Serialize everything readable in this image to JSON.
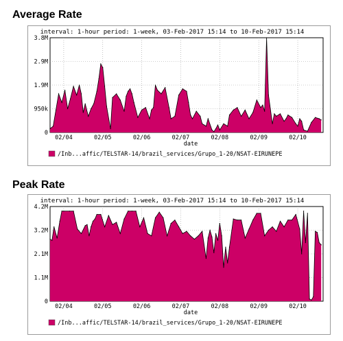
{
  "colors": {
    "fill": "#cc0066",
    "stroke": "#000000",
    "grid": "#9a9a9a",
    "plot_bg": "#ffffff"
  },
  "chart_data": [
    {
      "type": "area",
      "title": "Average Rate",
      "subtitle": "interval: 1-hour   period: 1-week, 03-Feb-2017 15:14 to 10-Feb-2017 15:14",
      "xlabel": "date",
      "ylabel": "",
      "xlim": [
        0,
        7
      ],
      "ylim": [
        0,
        3800000
      ],
      "yticks": [
        {
          "value": 0,
          "label": "0"
        },
        {
          "value": 950000,
          "label": "950k"
        },
        {
          "value": 1900000,
          "label": "1.9M"
        },
        {
          "value": 2850000,
          "label": "2.9M"
        },
        {
          "value": 3800000,
          "label": "3.8M"
        }
      ],
      "xticks": [
        {
          "value": 0.35,
          "label": "02/04"
        },
        {
          "value": 1.35,
          "label": "02/05"
        },
        {
          "value": 2.35,
          "label": "02/06"
        },
        {
          "value": 3.35,
          "label": "02/07"
        },
        {
          "value": 4.35,
          "label": "02/08"
        },
        {
          "value": 5.35,
          "label": "02/09"
        },
        {
          "value": 6.35,
          "label": "02/10"
        }
      ],
      "grid": true,
      "legend_position": "bottom",
      "series": [
        {
          "name": "/Inb...affic/TELSTAR-14/brazil_services/Grupo_1-20/NSAT-EIRUNEPE",
          "x": [
            0,
            0.08,
            0.15,
            0.22,
            0.3,
            0.38,
            0.45,
            0.52,
            0.6,
            0.68,
            0.75,
            0.8,
            0.85,
            0.9,
            0.98,
            1.05,
            1.12,
            1.2,
            1.25,
            1.3,
            1.35,
            1.4,
            1.45,
            1.55,
            1.6,
            1.7,
            1.8,
            1.9,
            1.95,
            2.0,
            2.05,
            2.1,
            2.15,
            2.25,
            2.35,
            2.45,
            2.55,
            2.6,
            2.65,
            2.7,
            2.75,
            2.85,
            2.95,
            3.05,
            3.1,
            3.2,
            3.3,
            3.4,
            3.5,
            3.55,
            3.6,
            3.65,
            3.75,
            3.85,
            3.9,
            3.95,
            4.0,
            4.05,
            4.15,
            4.2,
            4.25,
            4.3,
            4.35,
            4.45,
            4.55,
            4.6,
            4.7,
            4.8,
            4.9,
            5.0,
            5.1,
            5.2,
            5.3,
            5.4,
            5.45,
            5.5,
            5.55,
            5.6,
            5.7,
            5.75,
            5.8,
            5.9,
            6.0,
            6.05,
            6.1,
            6.2,
            6.3,
            6.35,
            6.4,
            6.45,
            6.5,
            6.6,
            6.7,
            6.8,
            6.9,
            6.95
          ],
          "values": [
            150000,
            250000,
            900000,
            1550000,
            1200000,
            1700000,
            950000,
            1350000,
            1850000,
            1500000,
            1900000,
            1550000,
            800000,
            1150000,
            650000,
            950000,
            1150000,
            1650000,
            2150000,
            2750000,
            2600000,
            1850000,
            1050000,
            150000,
            1400000,
            1550000,
            1300000,
            850000,
            1450000,
            1650000,
            1750000,
            1550000,
            1200000,
            600000,
            900000,
            1000000,
            550000,
            900000,
            1000000,
            1900000,
            1700000,
            1550000,
            1800000,
            1000000,
            550000,
            650000,
            1500000,
            1750000,
            1650000,
            1200000,
            700000,
            550000,
            850000,
            650000,
            350000,
            300000,
            250000,
            550000,
            100000,
            30000,
            150000,
            300000,
            100000,
            350000,
            250000,
            700000,
            900000,
            1000000,
            650000,
            900000,
            550000,
            800000,
            1300000,
            1000000,
            1100000,
            850000,
            3800000,
            1500000,
            350000,
            750000,
            650000,
            750000,
            450000,
            550000,
            700000,
            600000,
            350000,
            250000,
            550000,
            450000,
            100000,
            50000,
            400000,
            600000,
            550000,
            500000
          ]
        }
      ]
    },
    {
      "type": "area",
      "title": "Peak Rate",
      "subtitle": "interval: 1-hour   period: 1-week, 03-Feb-2017 15:14 to 10-Feb-2017 15:14",
      "xlabel": "date",
      "ylabel": "",
      "xlim": [
        0,
        7
      ],
      "ylim": [
        0,
        4200000
      ],
      "yticks": [
        {
          "value": 0,
          "label": "0"
        },
        {
          "value": 1050000,
          "label": "1.1M"
        },
        {
          "value": 2100000,
          "label": "2.1M"
        },
        {
          "value": 3150000,
          "label": "3.2M"
        },
        {
          "value": 4200000,
          "label": "4.2M"
        }
      ],
      "xticks": [
        {
          "value": 0.35,
          "label": "02/04"
        },
        {
          "value": 1.35,
          "label": "02/05"
        },
        {
          "value": 2.35,
          "label": "02/06"
        },
        {
          "value": 3.35,
          "label": "02/07"
        },
        {
          "value": 4.35,
          "label": "02/08"
        },
        {
          "value": 5.35,
          "label": "02/09"
        },
        {
          "value": 6.35,
          "label": "02/10"
        }
      ],
      "grid": true,
      "legend_position": "bottom",
      "series": [
        {
          "name": "/Inb...affic/TELSTAR-14/brazil_services/Grupo_1-20/NSAT-EIRUNEPE",
          "x": [
            0,
            0.05,
            0.1,
            0.18,
            0.25,
            0.3,
            0.35,
            0.5,
            0.6,
            0.7,
            0.8,
            0.9,
            0.95,
            1.0,
            1.05,
            1.1,
            1.15,
            1.2,
            1.3,
            1.4,
            1.5,
            1.6,
            1.7,
            1.8,
            1.9,
            2.0,
            2.1,
            2.2,
            2.3,
            2.4,
            2.5,
            2.6,
            2.7,
            2.8,
            2.9,
            3.0,
            3.1,
            3.2,
            3.3,
            3.4,
            3.5,
            3.6,
            3.7,
            3.8,
            3.9,
            4.0,
            4.05,
            4.1,
            4.15,
            4.2,
            4.25,
            4.3,
            4.35,
            4.4,
            4.45,
            4.5,
            4.55,
            4.6,
            4.7,
            4.8,
            4.9,
            5.0,
            5.1,
            5.2,
            5.3,
            5.4,
            5.5,
            5.6,
            5.7,
            5.8,
            5.9,
            6.0,
            6.1,
            6.2,
            6.3,
            6.4,
            6.45,
            6.5,
            6.55,
            6.6,
            6.65,
            6.7,
            6.75,
            6.8,
            6.85,
            6.9,
            6.95
          ],
          "values": [
            2750000,
            2700000,
            3300000,
            2800000,
            3550000,
            4000000,
            4000000,
            4000000,
            4000000,
            3200000,
            3000000,
            3350000,
            3400000,
            2900000,
            3300000,
            3550000,
            3650000,
            3850000,
            3850000,
            3300000,
            3800000,
            3400000,
            3500000,
            3000000,
            3650000,
            4000000,
            4000000,
            4000000,
            3300000,
            3700000,
            3000000,
            2900000,
            3700000,
            3950000,
            3700000,
            2900000,
            3450000,
            3600000,
            3300000,
            3000000,
            3100000,
            2900000,
            2750000,
            2900000,
            3100000,
            1900000,
            2800000,
            3150000,
            2850000,
            2150000,
            3000000,
            2700000,
            3450000,
            2900000,
            1500000,
            2400000,
            1700000,
            2400000,
            3650000,
            3600000,
            3600000,
            2800000,
            3200000,
            3600000,
            3900000,
            3900000,
            2900000,
            3150000,
            3300000,
            3100000,
            3550000,
            3300000,
            3600000,
            3600000,
            3850000,
            3200000,
            2100000,
            4000000,
            2600000,
            3900000,
            100000,
            50000,
            200000,
            3100000,
            3050000,
            2600000,
            2500000
          ]
        }
      ]
    }
  ]
}
